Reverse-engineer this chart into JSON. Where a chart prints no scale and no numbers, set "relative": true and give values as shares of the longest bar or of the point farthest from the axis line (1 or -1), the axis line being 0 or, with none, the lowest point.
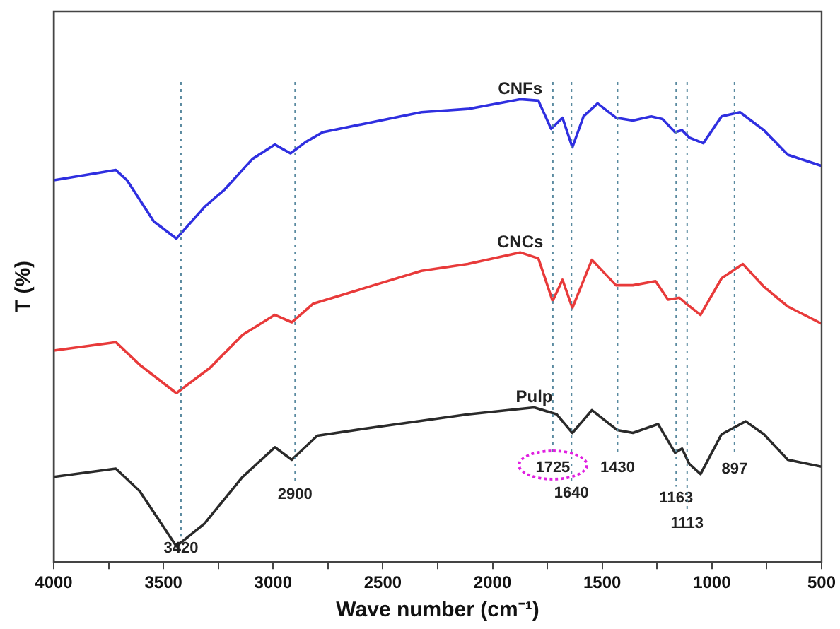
{
  "chart_data": {
    "type": "line",
    "xlabel": "Wave number (cm⁻¹)",
    "ylabel": "T (%)",
    "relative": true,
    "legend": false,
    "grid": false,
    "marker": "none",
    "line_style": "solid",
    "xlim": [
      4000,
      500
    ],
    "xticks": [
      4000,
      {
        "value": 3750,
        "label": null
      },
      3500,
      {
        "value": 3250,
        "label": null
      },
      3000,
      {
        "value": 2750,
        "label": null
      },
      2500,
      {
        "value": 2250,
        "label": null
      },
      2000,
      {
        "value": 1750,
        "label": null
      },
      1500,
      {
        "value": 1250,
        "label": null
      },
      1000,
      {
        "value": 750,
        "label": null
      },
      500
    ],
    "series": [
      {
        "name": "CNFs",
        "color": "#2f2fe0",
        "x": [
          4000,
          3717,
          3666,
          3544,
          3441,
          3313,
          3223,
          3094,
          2992,
          2921,
          2850,
          2773,
          2542,
          2324,
          2112,
          1874,
          1791,
          1733,
          1681,
          1636,
          1585,
          1521,
          1437,
          1360,
          1277,
          1225,
          1168,
          1136,
          1103,
          1039,
          956,
          872,
          763,
          654,
          500
        ],
        "values": [
          0.825,
          0.847,
          0.825,
          0.736,
          0.699,
          0.767,
          0.804,
          0.871,
          0.902,
          0.883,
          0.908,
          0.929,
          0.951,
          0.972,
          0.979,
          1.0,
          0.997,
          0.936,
          0.96,
          0.896,
          0.963,
          0.991,
          0.96,
          0.954,
          0.963,
          0.957,
          0.929,
          0.933,
          0.917,
          0.905,
          0.963,
          0.972,
          0.933,
          0.88,
          0.856
        ]
      },
      {
        "name": "CNCs",
        "color": "#e83a3a",
        "x": [
          4000,
          3717,
          3608,
          3441,
          3287,
          3139,
          2992,
          2915,
          2818,
          2542,
          2324,
          2112,
          1874,
          1791,
          1726,
          1681,
          1636,
          1547,
          1437,
          1360,
          1257,
          1200,
          1148,
          1116,
          1052,
          956,
          859,
          763,
          654,
          500
        ],
        "values": [
          0.457,
          0.475,
          0.426,
          0.365,
          0.42,
          0.491,
          0.534,
          0.518,
          0.558,
          0.598,
          0.629,
          0.644,
          0.669,
          0.656,
          0.564,
          0.61,
          0.549,
          0.653,
          0.598,
          0.598,
          0.607,
          0.567,
          0.571,
          0.558,
          0.534,
          0.613,
          0.644,
          0.595,
          0.552,
          0.515
        ]
      },
      {
        "name": "Pulp",
        "color": "#2a2a2a",
        "x": [
          4000,
          3717,
          3608,
          3441,
          3313,
          3139,
          2992,
          2915,
          2799,
          2542,
          2112,
          1810,
          1707,
          1636,
          1547,
          1431,
          1360,
          1245,
          1168,
          1136,
          1103,
          1052,
          956,
          846,
          763,
          654,
          500
        ],
        "values": [
          0.184,
          0.202,
          0.153,
          0.034,
          0.083,
          0.184,
          0.248,
          0.221,
          0.273,
          0.291,
          0.319,
          0.334,
          0.319,
          0.279,
          0.328,
          0.285,
          0.279,
          0.298,
          0.236,
          0.245,
          0.212,
          0.19,
          0.276,
          0.304,
          0.276,
          0.221,
          0.206
        ]
      }
    ],
    "ref_lines": [
      {
        "axis": "x",
        "value": 3420,
        "label": "3420",
        "color": "#5a8aa0",
        "line_style": "dotted"
      },
      {
        "axis": "x",
        "value": 2900,
        "label": "2900",
        "color": "#5a8aa0",
        "line_style": "dotted"
      },
      {
        "axis": "x",
        "value": 1725,
        "label": "1725",
        "color": "#5a8aa0",
        "line_style": "dotted"
      },
      {
        "axis": "x",
        "value": 1640,
        "label": "1640",
        "color": "#5a8aa0",
        "line_style": "dotted"
      },
      {
        "axis": "x",
        "value": 1430,
        "label": "1430",
        "color": "#5a8aa0",
        "line_style": "dotted"
      },
      {
        "axis": "x",
        "value": 1163,
        "label": "1163",
        "color": "#5a8aa0",
        "line_style": "dotted"
      },
      {
        "axis": "x",
        "value": 1113,
        "label": "1113",
        "color": "#5a8aa0",
        "line_style": "dotted"
      },
      {
        "axis": "x",
        "value": 897,
        "label": "897",
        "color": "#5a8aa0",
        "line_style": "dotted"
      }
    ]
  }
}
